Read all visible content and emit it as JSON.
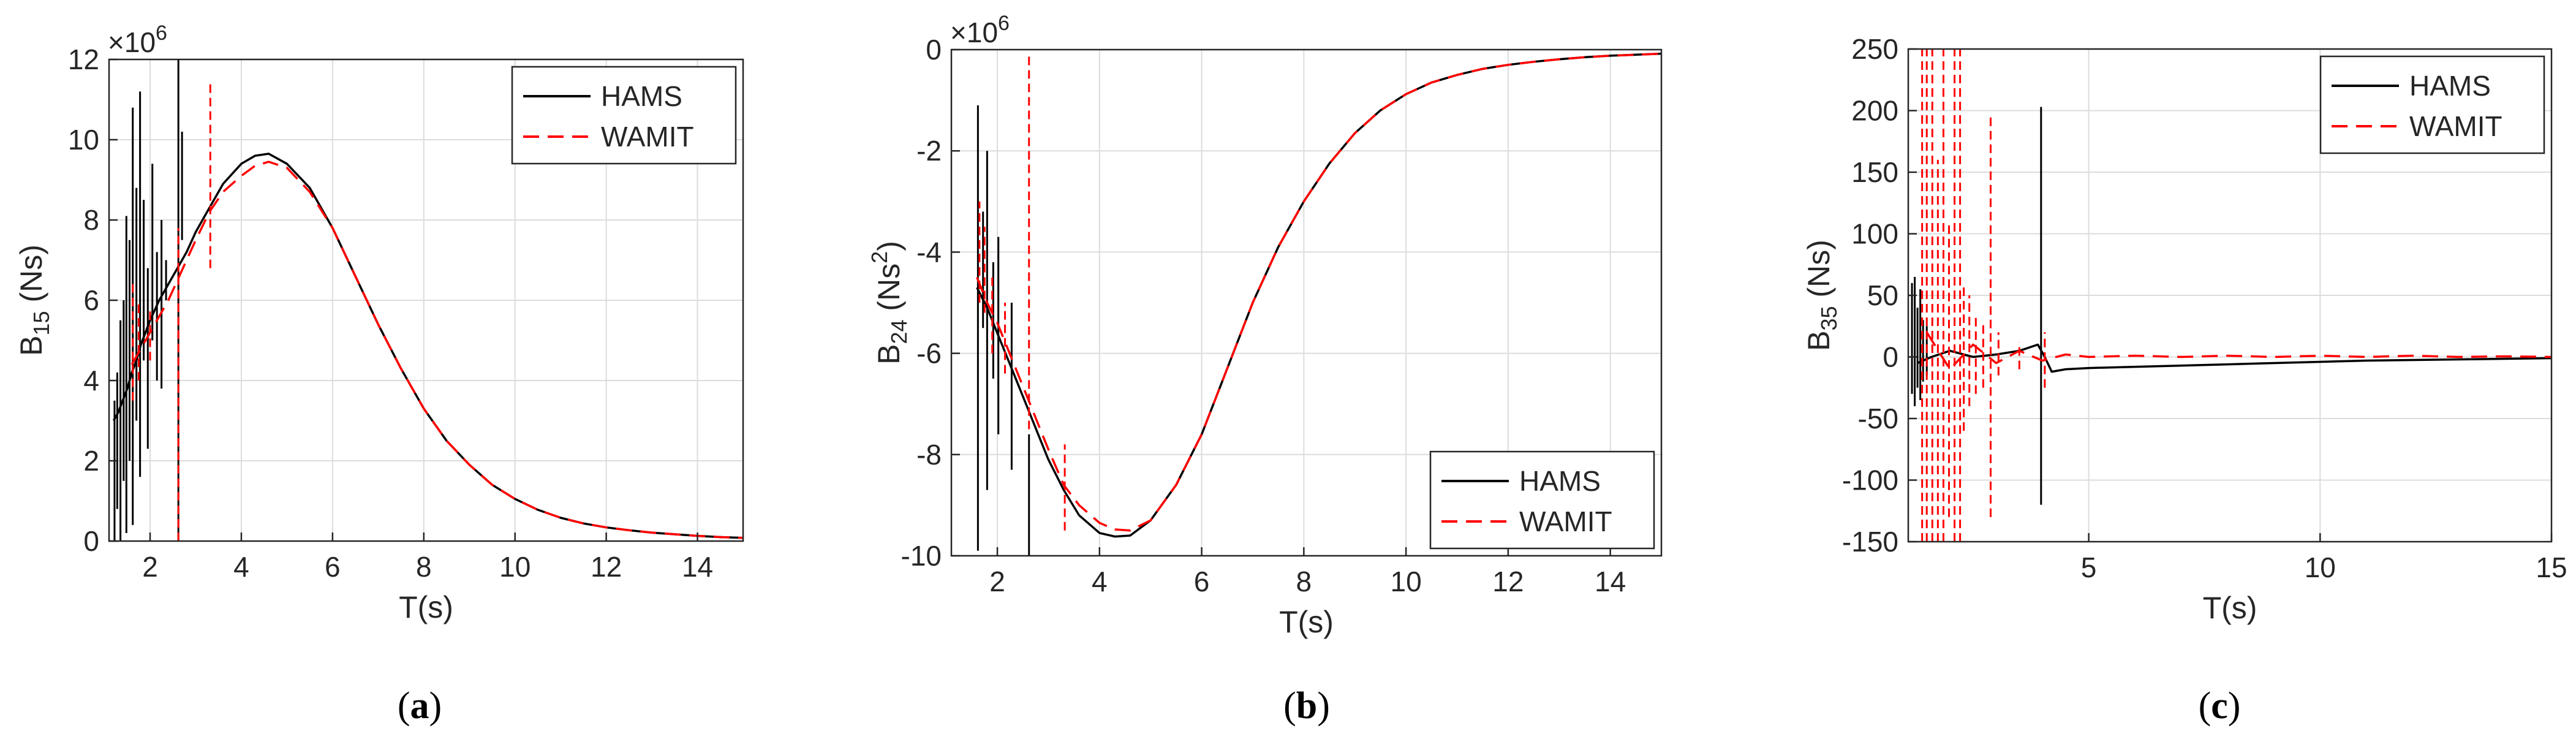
{
  "figure": {
    "series_names": [
      "HAMS",
      "WAMIT"
    ],
    "colors": {
      "hams": "#000000",
      "wamit": "#ff0000",
      "grid": "#dcdcdc",
      "axis": "#262626",
      "text": "#262626"
    }
  },
  "chart_data": [
    {
      "id": "a",
      "caption": "(a)",
      "type": "line",
      "ylabel_main": "B",
      "ylabel_sub": "15",
      "ylabel_sup": "",
      "ylabel_unit": " (Ns)",
      "ylabel_unit_tail": "",
      "xlabel": "T(s)",
      "multiplier": "×10",
      "multiplier_exp": "6",
      "xlim": [
        1.1,
        15
      ],
      "ylim": [
        0,
        12
      ],
      "xticks": [
        2,
        4,
        6,
        8,
        10,
        12,
        14
      ],
      "xtick_labels": [
        "2",
        "4",
        "6",
        "8",
        "10",
        "12",
        "14"
      ],
      "yticks": [
        0,
        2,
        4,
        6,
        8,
        10,
        12
      ],
      "ytick_labels": [
        "0",
        "2",
        "4",
        "6",
        "8",
        "10",
        "12"
      ],
      "legend": {
        "position": "top-right",
        "entries": [
          "HAMS",
          "WAMIT"
        ]
      },
      "series": [
        {
          "name": "HAMS",
          "x": [
            1.2,
            1.3,
            1.4,
            1.5,
            1.6,
            1.7,
            1.8,
            1.9,
            2.0,
            2.2,
            2.4,
            2.6,
            2.8,
            3.0,
            3.3,
            3.6,
            4.0,
            4.3,
            4.6,
            5.0,
            5.5,
            6.0,
            6.5,
            7.0,
            7.5,
            8.0,
            8.5,
            9.0,
            9.5,
            10,
            10.5,
            11,
            11.5,
            12,
            12.5,
            13,
            13.5,
            14,
            14.5,
            15
          ],
          "y": [
            3.0,
            3.2,
            3.5,
            3.8,
            4.2,
            4.5,
            4.9,
            5.2,
            5.5,
            6.0,
            6.4,
            6.8,
            7.2,
            7.7,
            8.3,
            8.9,
            9.4,
            9.6,
            9.65,
            9.4,
            8.8,
            7.8,
            6.6,
            5.4,
            4.3,
            3.3,
            2.5,
            1.9,
            1.4,
            1.05,
            0.78,
            0.58,
            0.44,
            0.34,
            0.27,
            0.21,
            0.17,
            0.13,
            0.1,
            0.08
          ],
          "spikes": [
            [
              1.22,
              0,
              3.5
            ],
            [
              1.28,
              0.8,
              4.2
            ],
            [
              1.35,
              0,
              5.5
            ],
            [
              1.42,
              1.5,
              6.0
            ],
            [
              1.48,
              0.2,
              8.1
            ],
            [
              1.55,
              2.0,
              7.5
            ],
            [
              1.62,
              0.4,
              10.8
            ],
            [
              1.7,
              3.0,
              8.8
            ],
            [
              1.78,
              1.6,
              11.2
            ],
            [
              1.86,
              4.5,
              8.5
            ],
            [
              1.95,
              2.3,
              6.8
            ],
            [
              2.05,
              5.0,
              9.4
            ],
            [
              2.15,
              4.0,
              7.2
            ],
            [
              2.25,
              3.8,
              8.0
            ],
            [
              2.35,
              6.0,
              7.0
            ],
            [
              2.62,
              0.0,
              12.2
            ],
            [
              2.7,
              7.5,
              10.2
            ]
          ]
        },
        {
          "name": "WAMIT",
          "x": [
            1.6,
            1.8,
            2.0,
            2.2,
            2.4,
            2.6,
            2.8,
            3.0,
            3.3,
            3.6,
            4.0,
            4.3,
            4.6,
            5.0,
            5.5,
            6.0,
            6.5,
            7.0,
            7.5,
            8.0,
            8.5,
            9.0,
            9.5,
            10,
            10.5,
            11,
            11.5,
            12,
            12.5,
            13,
            13.5,
            14,
            14.5,
            15
          ],
          "y": [
            4.4,
            4.8,
            5.2,
            5.6,
            6.0,
            6.5,
            7.0,
            7.5,
            8.2,
            8.7,
            9.1,
            9.35,
            9.45,
            9.3,
            8.7,
            7.8,
            6.6,
            5.4,
            4.3,
            3.3,
            2.5,
            1.9,
            1.4,
            1.05,
            0.78,
            0.58,
            0.44,
            0.34,
            0.27,
            0.21,
            0.17,
            0.13,
            0.1,
            0.08
          ],
          "spikes": [
            [
              1.62,
              3.5,
              6.5
            ],
            [
              1.75,
              4.0,
              6.0
            ],
            [
              2.0,
              4.5,
              5.8
            ],
            [
              2.62,
              0.0,
              7.8
            ],
            [
              3.32,
              6.8,
              11.5
            ]
          ]
        }
      ]
    },
    {
      "id": "b",
      "caption": "(b)",
      "type": "line",
      "ylabel_main": "B",
      "ylabel_sub": "24",
      "ylabel_sup": "2",
      "ylabel_unit": " (Ns",
      "ylabel_unit_tail": ")",
      "xlabel": "T(s)",
      "multiplier": "×10",
      "multiplier_exp": "6",
      "xlim": [
        1.1,
        15
      ],
      "ylim": [
        -10,
        0
      ],
      "xticks": [
        2,
        4,
        6,
        8,
        10,
        12,
        14
      ],
      "xtick_labels": [
        "2",
        "4",
        "6",
        "8",
        "10",
        "12",
        "14"
      ],
      "yticks": [
        -10,
        -8,
        -6,
        -4,
        -2,
        0
      ],
      "ytick_labels": [
        "-10",
        "-8",
        "-6",
        "-4",
        "-2",
        "0"
      ],
      "legend": {
        "position": "bottom-right",
        "entries": [
          "HAMS",
          "WAMIT"
        ]
      },
      "series": [
        {
          "name": "HAMS",
          "x": [
            1.6,
            1.8,
            2.0,
            2.2,
            2.4,
            2.6,
            2.8,
            3.0,
            3.3,
            3.6,
            4.0,
            4.3,
            4.6,
            5.0,
            5.5,
            6.0,
            6.5,
            7.0,
            7.5,
            8.0,
            8.5,
            9.0,
            9.5,
            10,
            10.5,
            11,
            11.5,
            12,
            12.5,
            13,
            13.5,
            14,
            14.5,
            15
          ],
          "y": [
            -4.7,
            -5.1,
            -5.6,
            -6.1,
            -6.6,
            -7.1,
            -7.6,
            -8.1,
            -8.7,
            -9.2,
            -9.55,
            -9.62,
            -9.6,
            -9.3,
            -8.6,
            -7.6,
            -6.3,
            -5.0,
            -3.9,
            -3.0,
            -2.25,
            -1.65,
            -1.2,
            -0.88,
            -0.65,
            -0.5,
            -0.38,
            -0.3,
            -0.24,
            -0.19,
            -0.15,
            -0.12,
            -0.1,
            -0.08
          ],
          "spikes": [
            [
              1.62,
              -9.9,
              -1.1
            ],
            [
              1.72,
              -5.5,
              -3.2
            ],
            [
              1.8,
              -8.7,
              -2.0
            ],
            [
              1.92,
              -6.5,
              -4.2
            ],
            [
              2.02,
              -7.6,
              -3.7
            ],
            [
              2.28,
              -8.3,
              -5.0
            ],
            [
              2.62,
              -10.0,
              -7.6
            ]
          ]
        },
        {
          "name": "WAMIT",
          "x": [
            1.6,
            1.8,
            2.0,
            2.2,
            2.4,
            2.6,
            2.8,
            3.0,
            3.3,
            3.6,
            4.0,
            4.3,
            4.6,
            5.0,
            5.5,
            6.0,
            6.5,
            7.0,
            7.5,
            8.0,
            8.5,
            9.0,
            9.5,
            10,
            10.5,
            11,
            11.5,
            12,
            12.5,
            13,
            13.5,
            14,
            14.5,
            15
          ],
          "y": [
            -4.5,
            -5.0,
            -5.4,
            -5.9,
            -6.4,
            -6.9,
            -7.4,
            -7.9,
            -8.6,
            -9.0,
            -9.35,
            -9.48,
            -9.5,
            -9.3,
            -8.6,
            -7.6,
            -6.3,
            -5.0,
            -3.9,
            -3.0,
            -2.25,
            -1.65,
            -1.2,
            -0.88,
            -0.65,
            -0.5,
            -0.38,
            -0.3,
            -0.24,
            -0.19,
            -0.15,
            -0.12,
            -0.1,
            -0.08
          ],
          "spikes": [
            [
              1.65,
              -5.0,
              -3.0
            ],
            [
              1.75,
              -5.2,
              -3.5
            ],
            [
              1.9,
              -6.0,
              -4.5
            ],
            [
              2.15,
              -6.4,
              -5.0
            ],
            [
              2.62,
              -7.5,
              -0.1
            ],
            [
              3.32,
              -9.5,
              -7.8
            ]
          ]
        }
      ]
    },
    {
      "id": "c",
      "caption": "(c)",
      "type": "line",
      "ylabel_main": "B",
      "ylabel_sub": "35",
      "ylabel_sup": "",
      "ylabel_unit": " (Ns)",
      "ylabel_unit_tail": "",
      "xlabel": "T(s)",
      "multiplier": "",
      "multiplier_exp": "",
      "xlim": [
        1.1,
        15
      ],
      "ylim": [
        -150,
        250
      ],
      "xticks": [
        5,
        10,
        15
      ],
      "xtick_labels": [
        "5",
        "10",
        "15"
      ],
      "yticks": [
        -150,
        -100,
        -50,
        0,
        50,
        100,
        150,
        200,
        250
      ],
      "ytick_labels": [
        "-150",
        "-100",
        "-50",
        "0",
        "50",
        "100",
        "150",
        "200",
        "250"
      ],
      "legend": {
        "position": "top-right",
        "entries": [
          "HAMS",
          "WAMIT"
        ]
      },
      "series": [
        {
          "name": "HAMS",
          "x": [
            1.3,
            1.6,
            2.0,
            2.5,
            3.0,
            3.5,
            3.9,
            4.05,
            4.2,
            4.5,
            5,
            6,
            7,
            8,
            9,
            10,
            11,
            12,
            13,
            14,
            15
          ],
          "y": [
            -5,
            0,
            5,
            0,
            2,
            5,
            10,
            0,
            -12,
            -10,
            -9,
            -8,
            -7,
            -6,
            -5,
            -4,
            -3,
            -2.5,
            -2,
            -1.5,
            -1
          ],
          "spikes": [
            [
              1.18,
              -30,
              60
            ],
            [
              1.24,
              -40,
              65
            ],
            [
              1.3,
              -25,
              40
            ],
            [
              1.36,
              -35,
              55
            ],
            [
              1.42,
              -20,
              30
            ],
            [
              1.5,
              -15,
              25
            ],
            [
              3.97,
              -120,
              203
            ]
          ]
        },
        {
          "name": "WAMIT",
          "x": [
            1.5,
            2.0,
            2.5,
            3.0,
            3.5,
            4.0,
            4.5,
            5,
            6,
            7,
            8,
            9,
            10,
            11,
            12,
            13,
            14,
            15
          ],
          "y": [
            20,
            -10,
            10,
            -5,
            5,
            -3,
            2,
            0,
            1,
            0,
            1,
            0,
            1,
            0,
            1,
            0,
            0.5,
            0
          ],
          "spikes": [
            [
              1.4,
              -150,
              250
            ],
            [
              1.5,
              -150,
              250
            ],
            [
              1.62,
              -150,
              250
            ],
            [
              1.74,
              -150,
              160
            ],
            [
              1.86,
              -150,
              250
            ],
            [
              1.98,
              -130,
              110
            ],
            [
              2.1,
              -150,
              250
            ],
            [
              2.22,
              -150,
              250
            ],
            [
              2.3,
              -60,
              60
            ],
            [
              2.42,
              -40,
              50
            ],
            [
              2.56,
              -30,
              35
            ],
            [
              2.72,
              -25,
              28
            ],
            [
              2.88,
              -130,
              195
            ],
            [
              3.05,
              -15,
              20
            ],
            [
              3.5,
              -10,
              12
            ],
            [
              4.05,
              -25,
              20
            ]
          ]
        }
      ]
    }
  ]
}
